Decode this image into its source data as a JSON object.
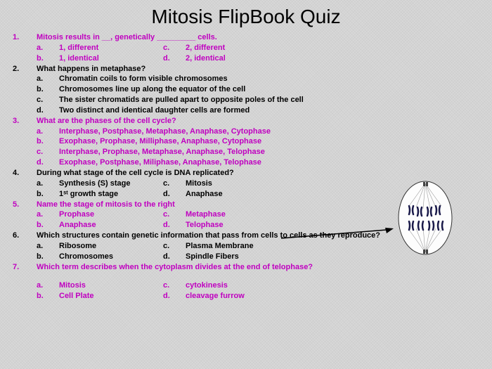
{
  "title": "Mitosis FlipBook Quiz",
  "colors": {
    "magenta": "#c000c0",
    "black": "#000000",
    "bg": "#d8d8d8"
  },
  "questions": [
    {
      "num": "1.",
      "color": "magenta",
      "text": "Mitosis results in __, genetically _________ cells.",
      "layout": "2col",
      "options": [
        {
          "letter": "a.",
          "text": "1, different"
        },
        {
          "letter": "c.",
          "text": "2, different"
        },
        {
          "letter": "b.",
          "text": "1, identical"
        },
        {
          "letter": "d.",
          "text": "2, identical"
        }
      ]
    },
    {
      "num": "2.",
      "color": "black",
      "text": "What happens in metaphase?",
      "layout": "1col",
      "options": [
        {
          "letter": "a.",
          "text": "Chromatin coils to form visible chromosomes"
        },
        {
          "letter": "b.",
          "text": "Chromosomes line up along the equator of the cell"
        },
        {
          "letter": "c.",
          "text": "The sister chromatids are pulled apart to opposite poles of the cell"
        },
        {
          "letter": "d.",
          "text": "Two distinct and identical daughter cells are formed"
        }
      ]
    },
    {
      "num": "3.",
      "color": "magenta",
      "text": "What are the phases of the cell cycle?",
      "layout": "1col",
      "options": [
        {
          "letter": "a.",
          "text": "Interphase, Postphase, Metaphase, Anaphase, Cytophase"
        },
        {
          "letter": "b.",
          "text": "Exophase, Prophase, Milliphase, Anaphase, Cytophase"
        },
        {
          "letter": "c.",
          "text": "Interphase, Prophase, Metaphase, Anaphase, Telophase"
        },
        {
          "letter": "d.",
          "text": "Exophase, Postphase, Miliphase, Anaphase, Telophase"
        }
      ]
    },
    {
      "num": "4.",
      "color": "black",
      "text": "During what stage of the cell cycle is DNA replicated?",
      "layout": "2col",
      "options": [
        {
          "letter": "a.",
          "text": "Synthesis (S) stage"
        },
        {
          "letter": "c.",
          "text": "Mitosis"
        },
        {
          "letter": "b.",
          "text": "1ˢᵗ growth stage"
        },
        {
          "letter": "d.",
          "text": "Anaphase"
        }
      ]
    },
    {
      "num": "5.",
      "color": "magenta",
      "text": "Name the stage of mitosis to the right",
      "layout": "2col",
      "options": [
        {
          "letter": "a.",
          "text": "Prophase"
        },
        {
          "letter": "c.",
          "text": "Metaphase"
        },
        {
          "letter": "b.",
          "text": "Anaphase"
        },
        {
          "letter": "d.",
          "text": "Telophase"
        }
      ]
    },
    {
      "num": "6.",
      "color": "black",
      "text": "Which structures contain genetic information that pass from cells to cells as they reproduce?",
      "layout": "2col",
      "options": [
        {
          "letter": "a.",
          "text": "Ribosome"
        },
        {
          "letter": "c.",
          "text": "Plasma Membrane"
        },
        {
          "letter": "b.",
          "text": "Chromosomes"
        },
        {
          "letter": "d.",
          "text": "Spindle Fibers"
        }
      ]
    },
    {
      "num": "7.",
      "color": "magenta",
      "text": "Which term describes when the cytoplasm divides at the end of telophase?",
      "layout": "2col",
      "gap": true,
      "options": [
        {
          "letter": "a.",
          "text": "Mitosis"
        },
        {
          "letter": "c.",
          "text": "cytokinesis"
        },
        {
          "letter": "b.",
          "text": "Cell Plate"
        },
        {
          "letter": "d.",
          "text": "cleavage furrow"
        }
      ]
    }
  ]
}
